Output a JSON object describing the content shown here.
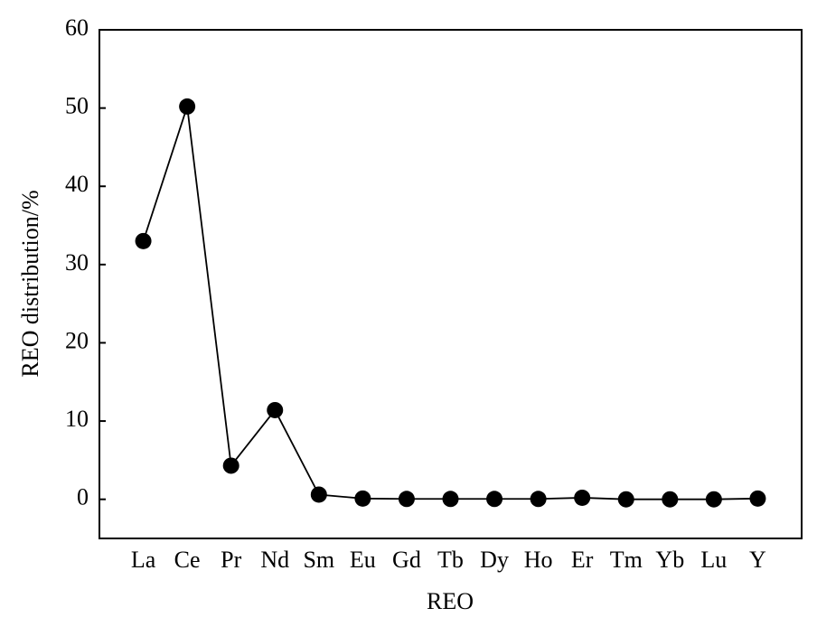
{
  "chart_data": {
    "type": "line",
    "x_label": "REO",
    "y_label": "REO distribution/%",
    "categories": [
      "La",
      "Ce",
      "Pr",
      "Nd",
      "Sm",
      "Eu",
      "Gd",
      "Tb",
      "Dy",
      "Ho",
      "Er",
      "Tm",
      "Yb",
      "Lu",
      "Y"
    ],
    "values": [
      33,
      50.2,
      4.3,
      11.4,
      0.6,
      0.1,
      0.05,
      0.05,
      0.05,
      0.05,
      0.2,
      0,
      0,
      0,
      0.1
    ],
    "color": "#000000",
    "ylim": [
      -5,
      60
    ],
    "yticks": [
      0,
      10,
      20,
      30,
      40,
      50,
      60
    ]
  }
}
